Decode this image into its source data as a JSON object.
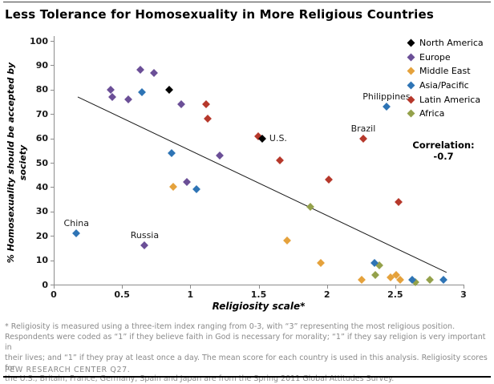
{
  "title": "Less Tolerance for Homosexuality in More Religious Countries",
  "source": "PEW RESEARCH CENTER Q27.",
  "footnote_lines": [
    "* Religiosity is measured using a three-item index ranging from 0-3, with “3” representing the most religious position.",
    "Respondents were coded as “1” if they believe faith in God is necessary for morality; “1” if they say religion is very important in",
    "their lives; and “1” if they pray at least once a day. The mean score for each country is used in this analysis. Religiosity scores for",
    "the U.S., Britain, France, Germany, Spain and Japan are from the Spring 2011 Global Attitudes Survey."
  ],
  "chart_data": {
    "type": "scatter",
    "grid": false,
    "legend_position": "top-right",
    "x_axis": {
      "title": "Religiosity scale*",
      "min": 0,
      "max": 3,
      "ticks": [
        0,
        0.5,
        1,
        1.5,
        2,
        2.5,
        3
      ],
      "tick_labels": [
        "0",
        "0.5",
        "1",
        "1.5",
        "2",
        "2.5",
        "3"
      ]
    },
    "y_axis": {
      "title": "% Homosexuality should be accepted by\nsociety",
      "min": 0,
      "max": 100,
      "ticks": [
        0,
        10,
        20,
        30,
        40,
        50,
        60,
        70,
        80,
        90,
        100
      ],
      "tick_labels": [
        "0",
        "10",
        "20",
        "30",
        "40",
        "50",
        "60",
        "70",
        "80",
        "90",
        "100"
      ]
    },
    "series": [
      {
        "name": "North America",
        "color": "#000000",
        "points": [
          {
            "x": 0.84,
            "y": 80
          },
          {
            "x": 1.52,
            "y": 60
          }
        ]
      },
      {
        "name": "Europe",
        "color": "#6b4f97",
        "points": [
          {
            "x": 0.41,
            "y": 80
          },
          {
            "x": 0.42,
            "y": 77
          },
          {
            "x": 0.54,
            "y": 76
          },
          {
            "x": 0.63,
            "y": 88
          },
          {
            "x": 0.73,
            "y": 87
          },
          {
            "x": 0.93,
            "y": 74
          },
          {
            "x": 0.97,
            "y": 42
          },
          {
            "x": 1.21,
            "y": 53
          },
          {
            "x": 0.66,
            "y": 16
          }
        ]
      },
      {
        "name": "Middle East",
        "color": "#e5a23c",
        "points": [
          {
            "x": 0.87,
            "y": 40
          },
          {
            "x": 1.7,
            "y": 18
          },
          {
            "x": 1.95,
            "y": 9
          },
          {
            "x": 2.25,
            "y": 2
          },
          {
            "x": 2.46,
            "y": 3
          },
          {
            "x": 2.5,
            "y": 4
          },
          {
            "x": 2.53,
            "y": 2
          }
        ]
      },
      {
        "name": "Asia/Pacific",
        "color": "#2e74b5",
        "points": [
          {
            "x": 0.16,
            "y": 21
          },
          {
            "x": 0.64,
            "y": 79
          },
          {
            "x": 0.86,
            "y": 54
          },
          {
            "x": 1.04,
            "y": 39
          },
          {
            "x": 2.34,
            "y": 9
          },
          {
            "x": 2.43,
            "y": 73
          },
          {
            "x": 2.62,
            "y": 2
          },
          {
            "x": 2.85,
            "y": 2
          }
        ]
      },
      {
        "name": "Latin America",
        "color": "#b6382b",
        "points": [
          {
            "x": 1.11,
            "y": 74
          },
          {
            "x": 1.12,
            "y": 68
          },
          {
            "x": 1.49,
            "y": 61
          },
          {
            "x": 1.65,
            "y": 51
          },
          {
            "x": 2.01,
            "y": 43
          },
          {
            "x": 2.26,
            "y": 60
          },
          {
            "x": 2.52,
            "y": 34
          }
        ]
      },
      {
        "name": "Africa",
        "color": "#94a14b",
        "points": [
          {
            "x": 1.87,
            "y": 32
          },
          {
            "x": 2.35,
            "y": 4
          },
          {
            "x": 2.38,
            "y": 8
          },
          {
            "x": 2.64,
            "y": 1
          },
          {
            "x": 2.75,
            "y": 2
          }
        ]
      }
    ],
    "point_labels": [
      {
        "text": "China",
        "x": 0.16,
        "y": 21,
        "position": "above"
      },
      {
        "text": "Russia",
        "x": 0.66,
        "y": 16,
        "position": "above"
      },
      {
        "text": "U.S.",
        "x": 1.52,
        "y": 60,
        "position": "right"
      },
      {
        "text": "Brazil",
        "x": 2.26,
        "y": 60,
        "position": "above"
      },
      {
        "text": "Philippines",
        "x": 2.43,
        "y": 73,
        "position": "above"
      }
    ],
    "trend_line": {
      "x1": 0.17,
      "y1": 77,
      "x2": 2.87,
      "y2": 5
    },
    "correlation": {
      "label": "Correlation:",
      "value": "-0.7"
    }
  }
}
